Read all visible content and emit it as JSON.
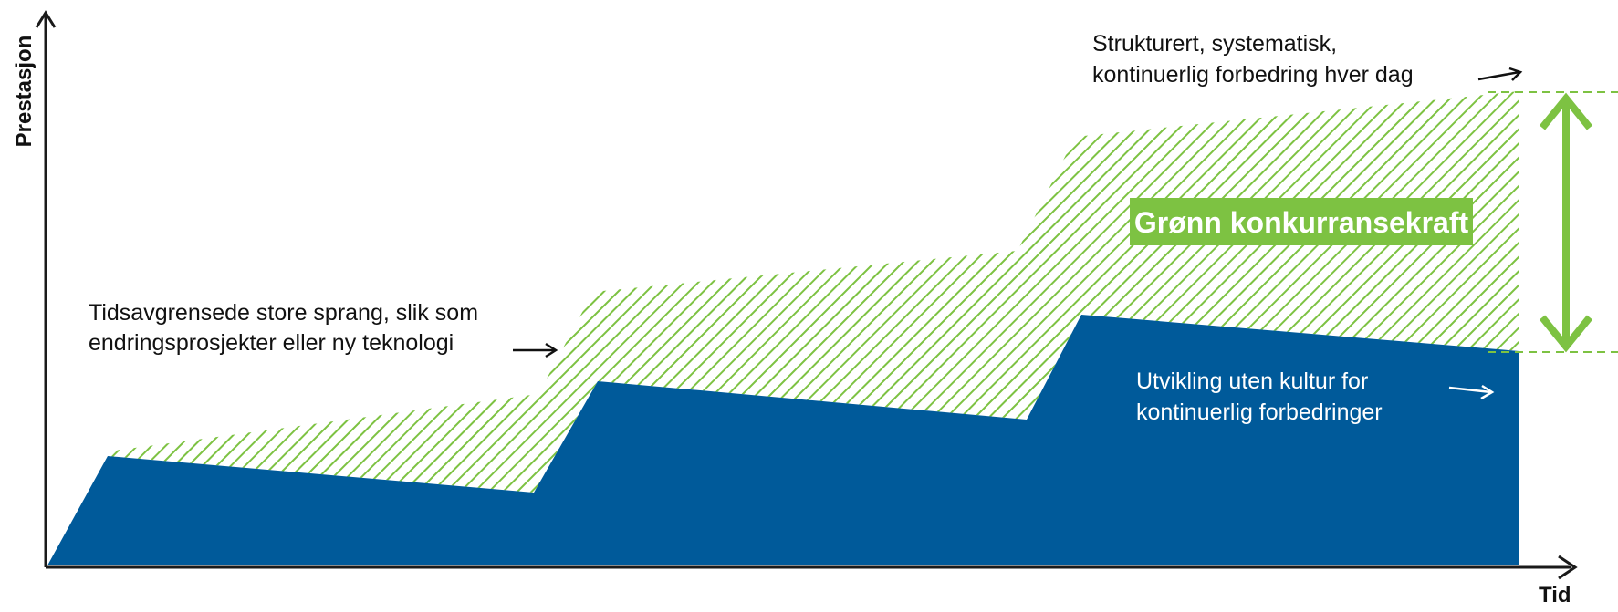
{
  "axes": {
    "y_label": "Prestasjon",
    "x_label": "Tid"
  },
  "annotations": {
    "leaps": [
      "Tidsavgrensede store sprang, slik som",
      "endringsprosjekter eller ny teknologi"
    ],
    "structured": [
      "Strukturert, systematisk,",
      "kontinuerlig forbedring hver dag"
    ],
    "without_culture": [
      "Utvikling uten kultur for",
      "kontinuerlig forbedringer"
    ]
  },
  "badge": "Grønn konkurransekraft",
  "colors": {
    "blue": "#005a9a",
    "green": "#7dc242",
    "axis": "#1a1a1a",
    "text": "#111111"
  }
}
